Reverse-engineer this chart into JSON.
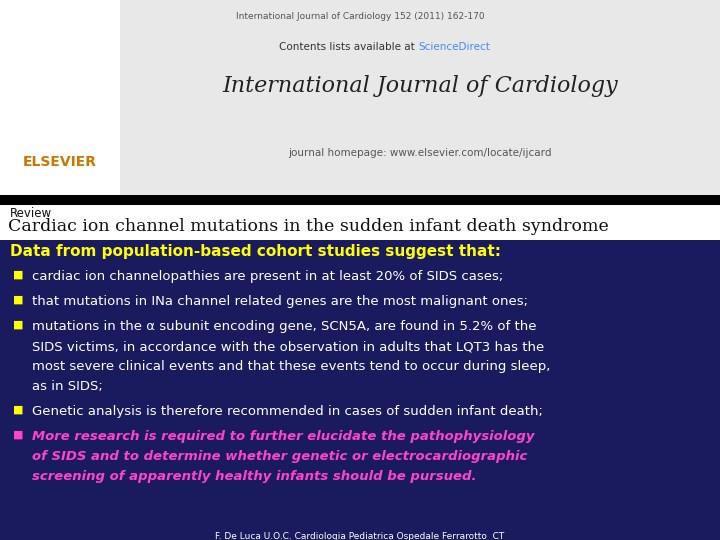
{
  "journal_top_line": "International Journal of Cardiology 152 (2011) 162-170",
  "contents_line_plain": "Contents lists available at ",
  "contents_line_link": "ScienceDirect",
  "journal_name": "International Journal of Cardiology",
  "journal_url": "journal homepage: www.elsevier.com/locate/ijcard",
  "review_text": "Review",
  "article_title": "Cardiac ion channel mutations in the sudden infant death syndrome",
  "heading": "Data from population-based cohort studies suggest that:",
  "heading_color": "#ffff00",
  "bullet_color": "#ffff00",
  "bullet_text_color": "#ffffff",
  "bullet1": "cardiac ion channelopathies are present in at least 20% of SIDS cases;",
  "bullet2": "that mutations in INa channel related genes are the most malignant ones;",
  "bullet3a": "mutations in the α subunit encoding gene, SCN5A, are found in 5.2% of the",
  "bullet3b": "SIDS victims, in accordance with the observation in adults that LQT3 has the",
  "bullet3c": "most severe clinical events and that these events tend to occur during sleep,",
  "bullet3d": "as in SIDS;",
  "bullet4": "Genetic analysis is therefore recommended in cases of sudden infant death;",
  "bullet5a": "More research is required to further elucidate the pathophysiology",
  "bullet5b": "of SIDS and to determine whether genetic or electrocardiographic",
  "bullet5c": "screening of apparently healthy infants should be pursued.",
  "bullet5_color": "#ff44cc",
  "footer_text": "F. De Luca U.O.C. Cardiologia Pediatrica Ospedale Ferrarotto  CT",
  "footer_color": "#ffffff",
  "link_color": "#4488ff",
  "header_bg_color": "#e8e8e8",
  "white_color": "#ffffff",
  "dark_bg_color": "#1a1a5e",
  "black_color": "#000000",
  "elsevier_color": "#cc7700",
  "article_title_color": "#111111",
  "review_color": "#111111",
  "journal_name_color": "#222222",
  "journal_top_color": "#555555",
  "journal_url_color": "#555555"
}
